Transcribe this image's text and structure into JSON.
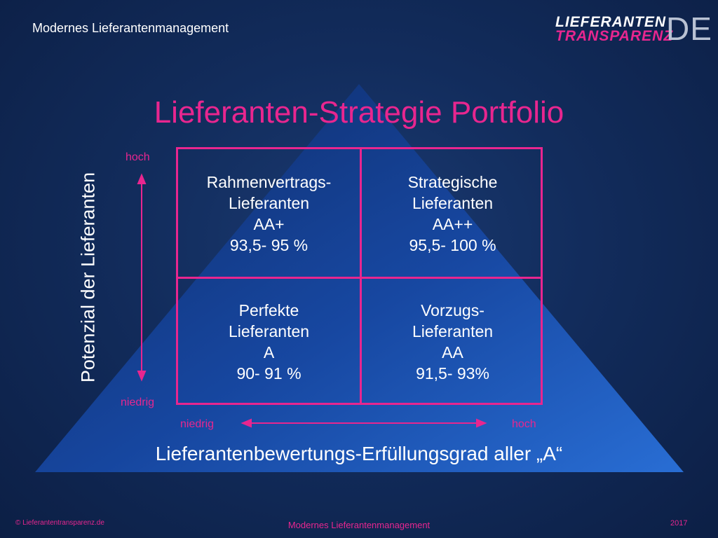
{
  "header": {
    "title": "Modernes Lieferantenmanagement"
  },
  "logo": {
    "line1": "LIEFERANTEN",
    "line2": "TRANSPARENZ",
    "suffix": "DE"
  },
  "diagram": {
    "title": "Lieferanten-Strategie Portfolio",
    "quadrants": {
      "top_left": [
        "Rahmenvertrags-",
        "Lieferanten",
        "AA+",
        "93,5- 95 %"
      ],
      "top_right": [
        "Strategische",
        "Lieferanten",
        "AA++",
        "95,5- 100 %"
      ],
      "bottom_left": [
        "Perfekte",
        "Lieferanten",
        "A",
        "90- 91 %"
      ],
      "bottom_right": [
        "Vorzugs-",
        "Lieferanten",
        "AA",
        "91,5- 93%"
      ]
    },
    "y_axis": {
      "title": "Potenzial der Lieferanten",
      "high": "hoch",
      "low": "niedrig"
    },
    "x_axis": {
      "title": "Lieferantenbewertungs-Erfüllungsgrad aller „A“",
      "low": "niedrig",
      "high": "hoch"
    }
  },
  "footer": {
    "copyright": "© Lieferantentransparenz.de",
    "center": "Modernes Lieferantenmanagement",
    "year": "2017"
  },
  "colors": {
    "accent": "#e8268f",
    "background": "#0f2652",
    "pyramid": "#1f5fbf"
  }
}
